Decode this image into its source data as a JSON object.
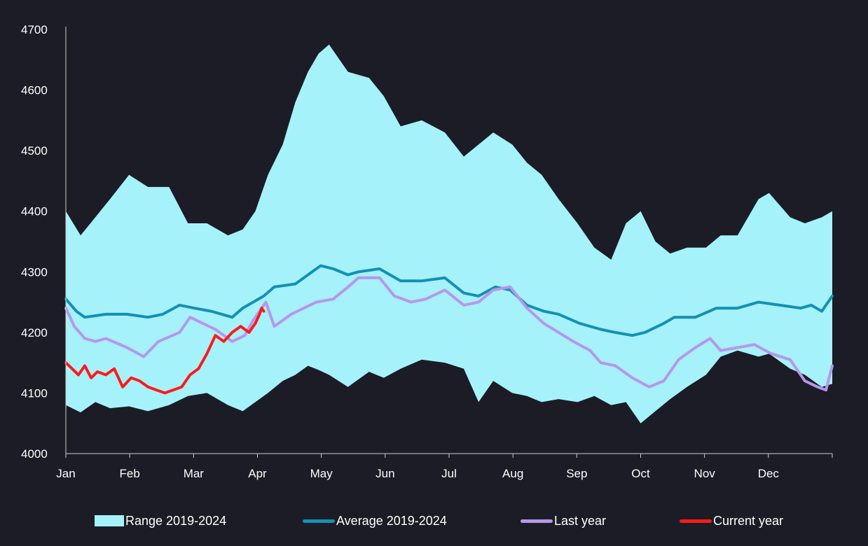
{
  "colors": {
    "background": "#1b1c25",
    "range_fill": "#a6f2fb",
    "average": "#1490b4",
    "last_year": "#b697ec",
    "current_year": "#ff1a1a",
    "axis": "#cfcfcf",
    "text": "#ffffff"
  },
  "legend": {
    "range": "Range 2019-2024",
    "average": "Average 2019-2024",
    "last_year": "Last year",
    "current_year": "Current year"
  },
  "chart_data": {
    "type": "area",
    "title": "",
    "xlabel": "",
    "ylabel": "",
    "ylim": [
      4000,
      4700
    ],
    "y_ticks": [
      4000,
      4100,
      4200,
      4300,
      4400,
      4500,
      4600,
      4700
    ],
    "x_tick_labels": [
      "Jan",
      "Feb",
      "Mar",
      "Apr",
      "May",
      "Jun",
      "Jul",
      "Aug",
      "Sep",
      "Oct",
      "Nov",
      "Dec"
    ],
    "x_unit": "day of year",
    "x_range": [
      1,
      365
    ],
    "grid": false,
    "legend_position": "bottom",
    "range_band": {
      "name": "Range 2019-2024",
      "x": [
        1,
        8,
        15,
        22,
        31,
        40,
        50,
        59,
        68,
        78,
        85,
        91,
        97,
        104,
        110,
        116,
        121,
        126,
        135,
        145,
        152,
        160,
        170,
        181,
        190,
        197,
        204,
        213,
        220,
        227,
        235,
        244,
        252,
        260,
        267,
        274,
        281,
        288,
        296,
        305,
        312,
        320,
        330,
        335,
        345,
        352,
        360,
        365
      ],
      "low": [
        4080,
        4068,
        4085,
        4075,
        4078,
        4070,
        4080,
        4095,
        4100,
        4080,
        4070,
        4085,
        4100,
        4120,
        4130,
        4145,
        4138,
        4130,
        4110,
        4135,
        4125,
        4140,
        4155,
        4150,
        4140,
        4085,
        4120,
        4100,
        4095,
        4085,
        4090,
        4085,
        4095,
        4080,
        4085,
        4050,
        4070,
        4090,
        4110,
        4130,
        4160,
        4170,
        4160,
        4165,
        4140,
        4130,
        4110,
        4115
      ],
      "high": [
        4400,
        4360,
        4390,
        4420,
        4460,
        4440,
        4440,
        4380,
        4380,
        4360,
        4370,
        4400,
        4460,
        4510,
        4580,
        4630,
        4660,
        4675,
        4630,
        4620,
        4590,
        4540,
        4550,
        4530,
        4490,
        4510,
        4530,
        4510,
        4480,
        4460,
        4420,
        4380,
        4340,
        4320,
        4380,
        4400,
        4350,
        4330,
        4340,
        4340,
        4360,
        4360,
        4420,
        4430,
        4390,
        4380,
        4390,
        4400
      ]
    },
    "series": [
      {
        "name": "Average 2019-2024",
        "x": [
          1,
          6,
          10,
          20,
          30,
          40,
          47,
          55,
          62,
          70,
          80,
          85,
          95,
          100,
          110,
          118,
          122,
          128,
          135,
          140,
          150,
          160,
          170,
          181,
          190,
          197,
          205,
          212,
          220,
          228,
          235,
          245,
          255,
          262,
          270,
          276,
          285,
          290,
          300,
          310,
          320,
          330,
          340,
          350,
          355,
          360,
          365
        ],
        "values": [
          4255,
          4235,
          4225,
          4230,
          4230,
          4225,
          4230,
          4245,
          4240,
          4235,
          4225,
          4240,
          4260,
          4275,
          4280,
          4300,
          4310,
          4305,
          4295,
          4300,
          4305,
          4285,
          4285,
          4290,
          4265,
          4260,
          4275,
          4270,
          4245,
          4235,
          4230,
          4215,
          4205,
          4200,
          4195,
          4200,
          4215,
          4225,
          4225,
          4240,
          4240,
          4250,
          4245,
          4240,
          4245,
          4235,
          4260
        ]
      },
      {
        "name": "Last year",
        "x": [
          1,
          5,
          10,
          15,
          20,
          30,
          38,
          45,
          55,
          60,
          66,
          72,
          80,
          86,
          90,
          96,
          100,
          108,
          114,
          120,
          128,
          135,
          140,
          150,
          157,
          165,
          172,
          181,
          190,
          197,
          204,
          212,
          220,
          228,
          235,
          242,
          250,
          255,
          262,
          270,
          278,
          285,
          292,
          300,
          307,
          312,
          320,
          328,
          336,
          345,
          352,
          358,
          362,
          365
        ],
        "values": [
          4240,
          4210,
          4190,
          4185,
          4190,
          4175,
          4160,
          4185,
          4200,
          4225,
          4215,
          4205,
          4185,
          4195,
          4220,
          4250,
          4210,
          4230,
          4240,
          4250,
          4255,
          4275,
          4290,
          4290,
          4260,
          4250,
          4255,
          4270,
          4245,
          4250,
          4270,
          4275,
          4240,
          4215,
          4200,
          4185,
          4170,
          4150,
          4145,
          4125,
          4110,
          4120,
          4155,
          4175,
          4190,
          4170,
          4175,
          4180,
          4165,
          4155,
          4120,
          4110,
          4105,
          4145
        ]
      },
      {
        "name": "Current year",
        "x": [
          1,
          4,
          7,
          10,
          13,
          16,
          20,
          24,
          28,
          32,
          36,
          40,
          44,
          48,
          52,
          56,
          60,
          64,
          68,
          72,
          76,
          80,
          84,
          88,
          91,
          93,
          94,
          95
        ],
        "values": [
          4150,
          4140,
          4130,
          4145,
          4125,
          4135,
          4130,
          4140,
          4110,
          4125,
          4120,
          4110,
          4105,
          4100,
          4105,
          4110,
          4130,
          4140,
          4165,
          4195,
          4185,
          4200,
          4210,
          4200,
          4215,
          4230,
          4240,
          4235
        ]
      }
    ]
  }
}
